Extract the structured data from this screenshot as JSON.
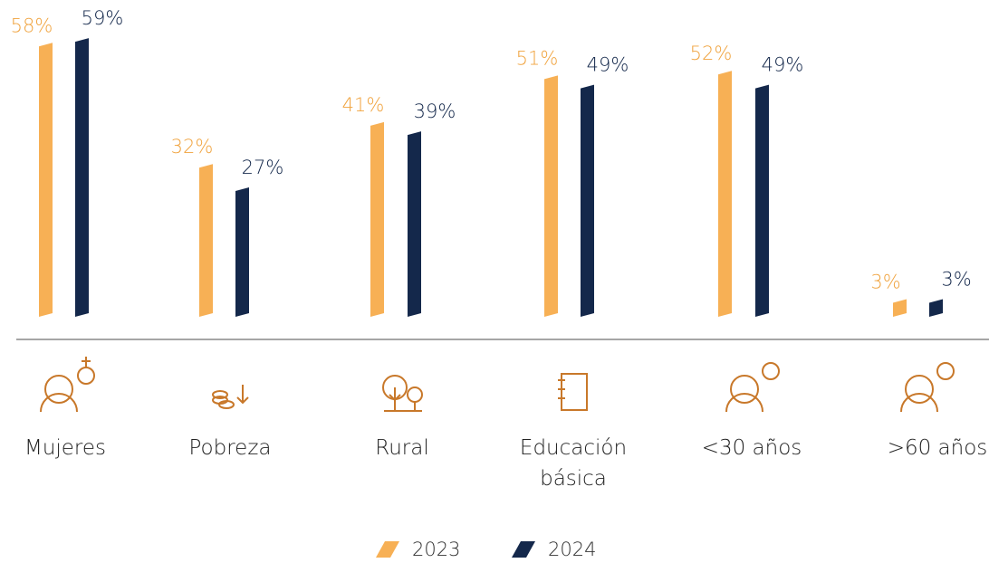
{
  "chart_data": {
    "type": "bar",
    "categories": [
      "Mujeres",
      "Pobreza",
      "Rural",
      "Educación básica",
      "<30 años",
      ">60 años"
    ],
    "series": [
      {
        "name": "2023",
        "color": "#f7b055",
        "values": [
          58,
          32,
          41,
          51,
          52,
          3
        ],
        "value_labels": [
          "58%",
          "32%",
          "41%",
          "51%",
          "52%",
          "3%"
        ]
      },
      {
        "name": "2024",
        "color": "#14284b",
        "values": [
          59,
          27,
          39,
          49,
          49,
          3
        ],
        "value_labels": [
          "59%",
          "27%",
          "39%",
          "49%",
          "49%",
          "3%"
        ]
      }
    ]
  }
}
